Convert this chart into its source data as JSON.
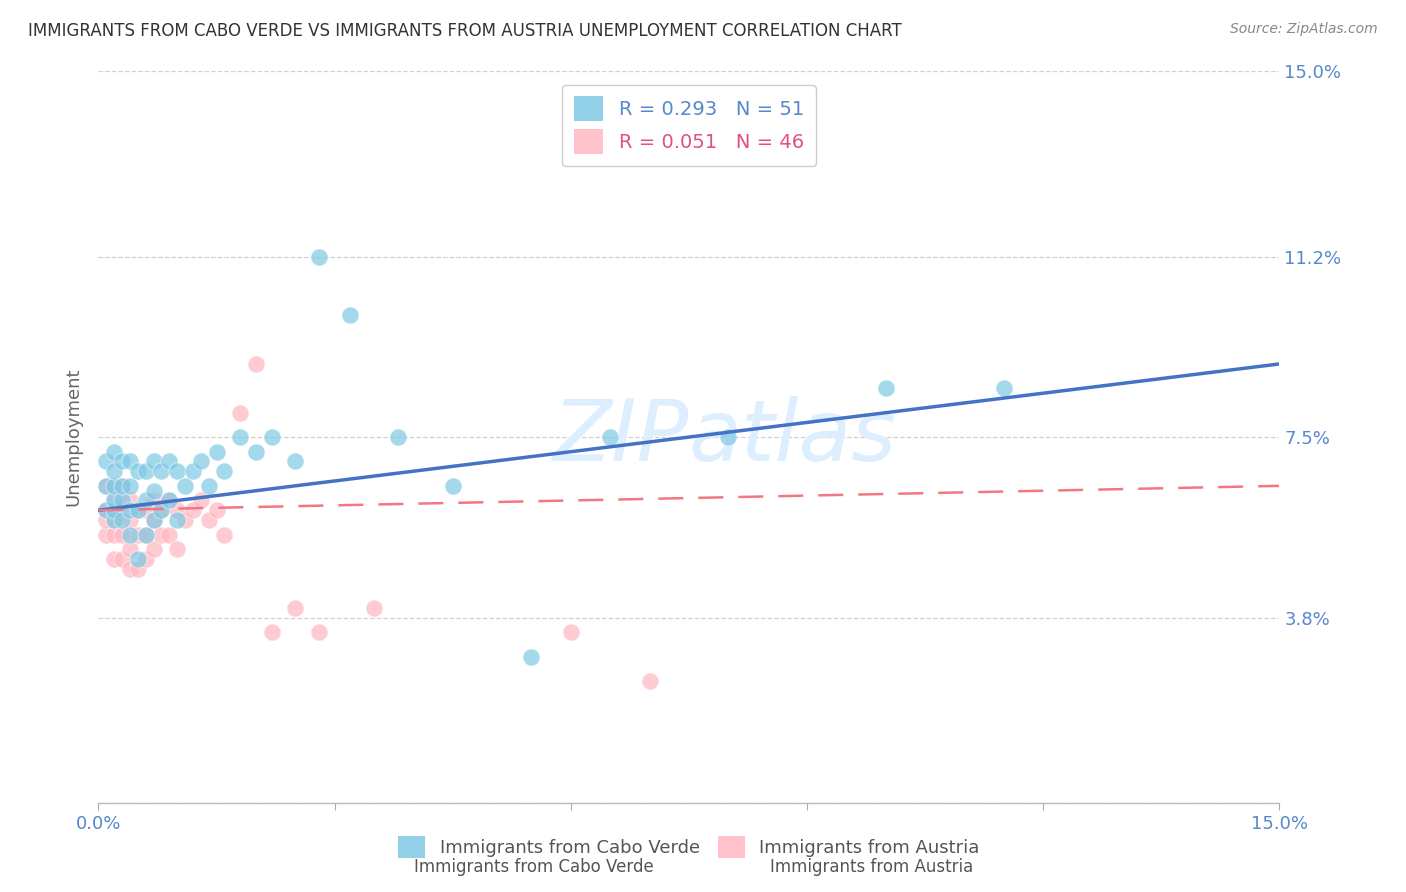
{
  "title": "IMMIGRANTS FROM CABO VERDE VS IMMIGRANTS FROM AUSTRIA UNEMPLOYMENT CORRELATION CHART",
  "source": "Source: ZipAtlas.com",
  "ylabel": "Unemployment",
  "xlim": [
    0.0,
    0.15
  ],
  "ylim": [
    0.0,
    0.15
  ],
  "ytick_values": [
    0.0,
    0.038,
    0.075,
    0.112,
    0.15
  ],
  "ytick_labels": [
    "",
    "3.8%",
    "7.5%",
    "11.2%",
    "15.0%"
  ],
  "xtick_values": [
    0.0,
    0.15
  ],
  "xtick_labels": [
    "0.0%",
    "15.0%"
  ],
  "cabo_verde_R": 0.293,
  "cabo_verde_N": 51,
  "austria_R": 0.051,
  "austria_N": 46,
  "cabo_verde_color": "#7ec8e3",
  "austria_color": "#ffb6c1",
  "trend_blue": "#4472c4",
  "trend_pink": "#f4777f",
  "background_color": "#ffffff",
  "grid_color": "#d0d0d0",
  "axis_label_color": "#5588cc",
  "title_color": "#333333",
  "watermark_color": "#ddeeff",
  "cabo_verde_x": [
    0.001,
    0.001,
    0.001,
    0.002,
    0.002,
    0.002,
    0.002,
    0.002,
    0.002,
    0.003,
    0.003,
    0.003,
    0.003,
    0.004,
    0.004,
    0.004,
    0.004,
    0.005,
    0.005,
    0.005,
    0.006,
    0.006,
    0.006,
    0.007,
    0.007,
    0.007,
    0.008,
    0.008,
    0.009,
    0.009,
    0.01,
    0.01,
    0.011,
    0.012,
    0.013,
    0.014,
    0.015,
    0.016,
    0.018,
    0.02,
    0.022,
    0.025,
    0.028,
    0.032,
    0.038,
    0.045,
    0.055,
    0.065,
    0.08,
    0.1,
    0.115
  ],
  "cabo_verde_y": [
    0.06,
    0.065,
    0.07,
    0.058,
    0.06,
    0.062,
    0.065,
    0.068,
    0.072,
    0.058,
    0.062,
    0.065,
    0.07,
    0.055,
    0.06,
    0.065,
    0.07,
    0.05,
    0.06,
    0.068,
    0.055,
    0.062,
    0.068,
    0.058,
    0.064,
    0.07,
    0.06,
    0.068,
    0.062,
    0.07,
    0.058,
    0.068,
    0.065,
    0.068,
    0.07,
    0.065,
    0.072,
    0.068,
    0.075,
    0.072,
    0.075,
    0.07,
    0.112,
    0.1,
    0.075,
    0.065,
    0.03,
    0.075,
    0.075,
    0.085,
    0.085
  ],
  "austria_x": [
    0.001,
    0.001,
    0.001,
    0.001,
    0.002,
    0.002,
    0.002,
    0.002,
    0.002,
    0.003,
    0.003,
    0.003,
    0.003,
    0.004,
    0.004,
    0.004,
    0.004,
    0.005,
    0.005,
    0.005,
    0.006,
    0.006,
    0.006,
    0.007,
    0.007,
    0.007,
    0.008,
    0.008,
    0.009,
    0.009,
    0.01,
    0.01,
    0.011,
    0.012,
    0.013,
    0.014,
    0.015,
    0.016,
    0.018,
    0.02,
    0.022,
    0.025,
    0.028,
    0.035,
    0.06,
    0.07
  ],
  "austria_y": [
    0.055,
    0.058,
    0.06,
    0.065,
    0.05,
    0.055,
    0.058,
    0.062,
    0.065,
    0.05,
    0.055,
    0.06,
    0.065,
    0.048,
    0.052,
    0.058,
    0.062,
    0.048,
    0.055,
    0.06,
    0.05,
    0.055,
    0.06,
    0.052,
    0.058,
    0.062,
    0.055,
    0.06,
    0.055,
    0.062,
    0.052,
    0.06,
    0.058,
    0.06,
    0.062,
    0.058,
    0.06,
    0.055,
    0.08,
    0.09,
    0.035,
    0.04,
    0.035,
    0.04,
    0.035,
    0.025
  ],
  "cabo_verde_trend_x": [
    0.0,
    0.15
  ],
  "cabo_verde_trend_y": [
    0.06,
    0.09
  ],
  "austria_trend_x": [
    0.0,
    0.15
  ],
  "austria_trend_y": [
    0.06,
    0.065
  ]
}
